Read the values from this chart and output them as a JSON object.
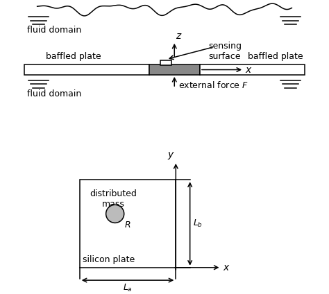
{
  "bg_color": "#ffffff",
  "line_color": "#000000",
  "gray_plate_color": "#888888",
  "light_gray": "#bbbbbb",
  "fluid_domain_top_label": "fluid domain",
  "fluid_domain_bottom_label": "fluid domain",
  "baffled_plate_left_label": "baffled plate",
  "baffled_plate_right_label": "baffled plate",
  "sensing_surface_label": "sensing\nsurface",
  "external_force_label": "external force $F$",
  "distributed_mass_label": "distributed\nmass",
  "silicon_plate_label": "silicon plate",
  "z_label": "$z$",
  "x_label_top": "$x$",
  "y_label": "$y$",
  "x_label_bot": "$x$",
  "La_label": "$L_a$",
  "Lb_label": "$L_b$",
  "R_label": "$R$"
}
